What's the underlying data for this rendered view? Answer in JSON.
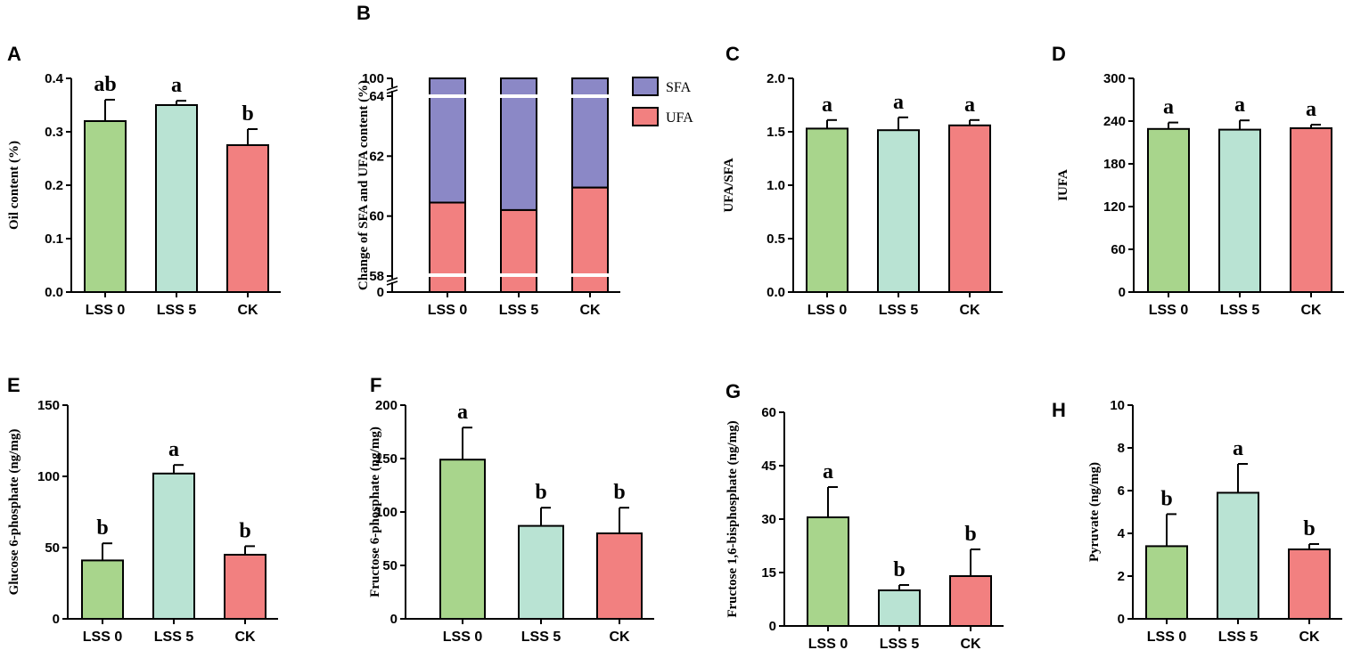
{
  "colors": {
    "lss0": "#a8d58c",
    "lss5": "#b9e3d3",
    "ck": "#f28080",
    "sfa": "#8b88c6",
    "ufa": "#f28080"
  },
  "chart_data": [
    {
      "id": "A",
      "panel": "A",
      "type": "bar",
      "title": "",
      "xlabel": "",
      "ylabel": "Oil content (%)",
      "categories": [
        "LSS 0",
        "LSS 5",
        "CK"
      ],
      "values": [
        0.32,
        0.35,
        0.275
      ],
      "errors": [
        0.04,
        0.008,
        0.03
      ],
      "letters": [
        "ab",
        "a",
        "b"
      ],
      "ylim": [
        0,
        0.4
      ],
      "yticks": [
        0.0,
        0.1,
        0.2,
        0.3,
        0.4
      ],
      "ytick_labels": [
        "0.0",
        "0.1",
        "0.2",
        "0.3",
        "0.4"
      ]
    },
    {
      "id": "B",
      "panel": "B",
      "type": "bar",
      "stacked": true,
      "broken_axis": true,
      "title": "",
      "xlabel": "",
      "ylabel": "Change of SFA and UFA content (%)",
      "categories": [
        "LSS 0",
        "LSS 5",
        "CK"
      ],
      "series": [
        {
          "name": "UFA",
          "values": [
            60.45,
            60.2,
            60.95
          ]
        },
        {
          "name": "SFA",
          "values": [
            39.55,
            39.8,
            39.05
          ]
        }
      ],
      "ytick_labels": [
        "0",
        "58",
        "60",
        "62",
        "64",
        "100"
      ],
      "legend": [
        "SFA",
        "UFA"
      ],
      "legend_position": "top-right"
    },
    {
      "id": "C",
      "panel": "C",
      "type": "bar",
      "title": "",
      "xlabel": "",
      "ylabel": "UFA/SFA",
      "categories": [
        "LSS 0",
        "LSS 5",
        "CK"
      ],
      "values": [
        1.53,
        1.515,
        1.56
      ],
      "errors": [
        0.08,
        0.12,
        0.05
      ],
      "letters": [
        "a",
        "a",
        "a"
      ],
      "ylim": [
        0,
        2.0
      ],
      "yticks": [
        0.0,
        0.5,
        1.0,
        1.5,
        2.0
      ],
      "ytick_labels": [
        "0.0",
        "0.5",
        "1.0",
        "1.5",
        "2.0"
      ]
    },
    {
      "id": "D",
      "panel": "D",
      "type": "bar",
      "title": "",
      "xlabel": "",
      "ylabel": "IUFA",
      "categories": [
        "LSS 0",
        "LSS 5",
        "CK"
      ],
      "values": [
        229,
        228,
        230
      ],
      "errors": [
        9,
        13,
        5
      ],
      "letters": [
        "a",
        "a",
        "a"
      ],
      "ylim": [
        0,
        300
      ],
      "yticks": [
        0,
        60,
        120,
        180,
        240,
        300
      ],
      "ytick_labels": [
        "0",
        "60",
        "120",
        "180",
        "240",
        "300"
      ]
    },
    {
      "id": "E",
      "panel": "E",
      "type": "bar",
      "title": "",
      "xlabel": "",
      "ylabel": "Glucose 6-phosphate (ng/mg)",
      "categories": [
        "LSS 0",
        "LSS 5",
        "CK"
      ],
      "values": [
        41,
        102,
        45
      ],
      "errors": [
        12,
        6,
        6
      ],
      "letters": [
        "b",
        "a",
        "b"
      ],
      "ylim": [
        0,
        150
      ],
      "yticks": [
        0,
        50,
        100,
        150
      ],
      "ytick_labels": [
        "0",
        "50",
        "100",
        "150"
      ]
    },
    {
      "id": "F",
      "panel": "F",
      "type": "bar",
      "title": "",
      "xlabel": "",
      "ylabel": "Fructose 6-phosphate (ng/mg)",
      "categories": [
        "LSS 0",
        "LSS 5",
        "CK"
      ],
      "values": [
        149,
        87,
        80
      ],
      "errors": [
        30,
        17,
        24
      ],
      "letters": [
        "a",
        "b",
        "b"
      ],
      "ylim": [
        0,
        200
      ],
      "yticks": [
        0,
        50,
        100,
        150,
        200
      ],
      "ytick_labels": [
        "0",
        "50",
        "100",
        "150",
        "200"
      ]
    },
    {
      "id": "G",
      "panel": "G",
      "type": "bar",
      "title": "",
      "xlabel": "",
      "ylabel": "Fructose 1,6-bisphosphate (ng/mg)",
      "categories": [
        "LSS 0",
        "LSS 5",
        "CK"
      ],
      "values": [
        30.5,
        10,
        14
      ],
      "errors": [
        8.5,
        1.5,
        7.5
      ],
      "letters": [
        "a",
        "b",
        "b"
      ],
      "ylim": [
        0,
        60
      ],
      "yticks": [
        0,
        15,
        30,
        45,
        60
      ],
      "ytick_labels": [
        "0",
        "15",
        "30",
        "45",
        "60"
      ]
    },
    {
      "id": "H",
      "panel": "H",
      "type": "bar",
      "title": "",
      "xlabel": "",
      "ylabel": "Pyruvate (ng/mg)",
      "categories": [
        "LSS 0",
        "LSS 5",
        "CK"
      ],
      "values": [
        3.4,
        5.9,
        3.25
      ],
      "errors": [
        1.5,
        1.35,
        0.25
      ],
      "letters": [
        "b",
        "a",
        "b"
      ],
      "ylim": [
        0,
        10
      ],
      "yticks": [
        0,
        2,
        4,
        6,
        8,
        10
      ],
      "ytick_labels": [
        "0",
        "2",
        "4",
        "6",
        "8",
        "10"
      ]
    }
  ]
}
